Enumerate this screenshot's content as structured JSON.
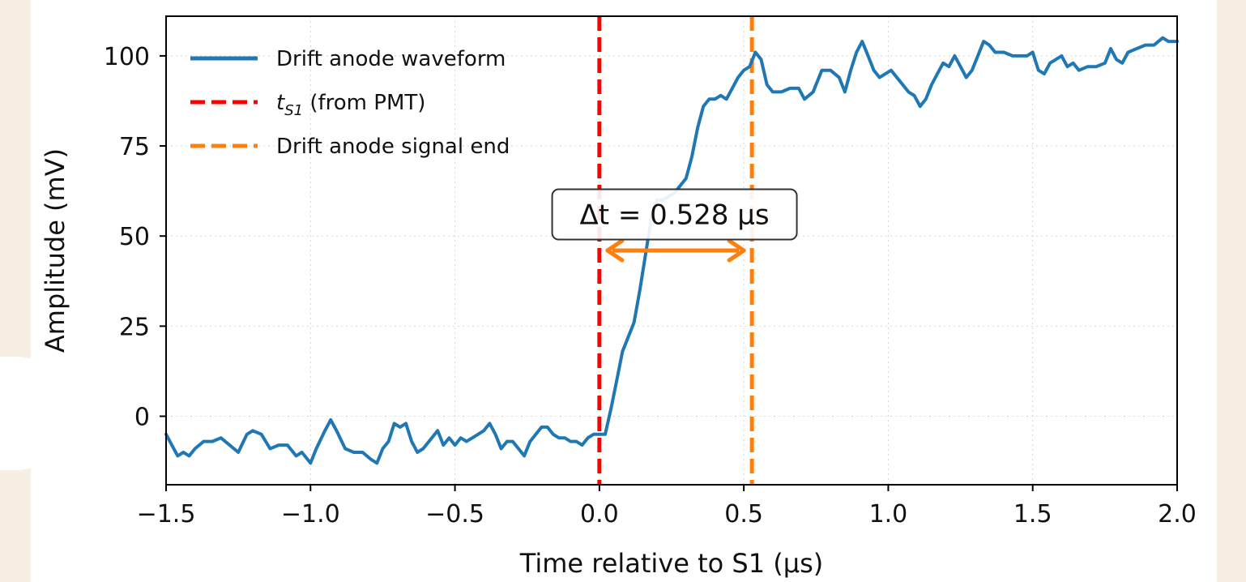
{
  "chart_data": {
    "type": "line",
    "xlabel": "Time relative to S1 (μs)",
    "ylabel": "Amplitude (mV)",
    "xlim": [
      -1.5,
      2.0
    ],
    "ylim": [
      -19,
      111
    ],
    "xticks": [
      -1.5,
      -1.0,
      -0.5,
      0.0,
      0.5,
      1.0,
      1.5,
      2.0
    ],
    "xtick_labels": [
      "−1.5",
      "−1.0",
      "−0.5",
      "0.0",
      "0.5",
      "1.0",
      "1.5",
      "2.0"
    ],
    "yticks": [
      0,
      25,
      50,
      75,
      100
    ],
    "ytick_labels": [
      "0",
      "25",
      "50",
      "75",
      "100"
    ],
    "grid": true,
    "legend_position": "top-left",
    "series": [
      {
        "name": "Drift anode waveform",
        "color": "#1f77b4",
        "points": [
          [
            -1.5,
            -5
          ],
          [
            -1.48,
            -8
          ],
          [
            -1.46,
            -11
          ],
          [
            -1.44,
            -10
          ],
          [
            -1.42,
            -11
          ],
          [
            -1.4,
            -9
          ],
          [
            -1.37,
            -7
          ],
          [
            -1.34,
            -7
          ],
          [
            -1.31,
            -6
          ],
          [
            -1.28,
            -8
          ],
          [
            -1.25,
            -10
          ],
          [
            -1.22,
            -5
          ],
          [
            -1.2,
            -4
          ],
          [
            -1.17,
            -5
          ],
          [
            -1.14,
            -9
          ],
          [
            -1.11,
            -8
          ],
          [
            -1.08,
            -8
          ],
          [
            -1.05,
            -11
          ],
          [
            -1.03,
            -10
          ],
          [
            -1.0,
            -13
          ],
          [
            -0.98,
            -9
          ],
          [
            -0.95,
            -4
          ],
          [
            -0.93,
            -1
          ],
          [
            -0.91,
            -4
          ],
          [
            -0.88,
            -9
          ],
          [
            -0.85,
            -10
          ],
          [
            -0.82,
            -10
          ],
          [
            -0.79,
            -12
          ],
          [
            -0.77,
            -13
          ],
          [
            -0.75,
            -9
          ],
          [
            -0.73,
            -7
          ],
          [
            -0.71,
            -2
          ],
          [
            -0.69,
            -3
          ],
          [
            -0.67,
            -2
          ],
          [
            -0.65,
            -7
          ],
          [
            -0.63,
            -10
          ],
          [
            -0.61,
            -9
          ],
          [
            -0.58,
            -6
          ],
          [
            -0.56,
            -4
          ],
          [
            -0.54,
            -8
          ],
          [
            -0.52,
            -6
          ],
          [
            -0.5,
            -8
          ],
          [
            -0.48,
            -6
          ],
          [
            -0.46,
            -7
          ],
          [
            -0.44,
            -6
          ],
          [
            -0.42,
            -5
          ],
          [
            -0.4,
            -4
          ],
          [
            -0.38,
            -2
          ],
          [
            -0.36,
            -5
          ],
          [
            -0.34,
            -9
          ],
          [
            -0.32,
            -7
          ],
          [
            -0.3,
            -7
          ],
          [
            -0.28,
            -9
          ],
          [
            -0.26,
            -11
          ],
          [
            -0.24,
            -7
          ],
          [
            -0.22,
            -5
          ],
          [
            -0.2,
            -3
          ],
          [
            -0.18,
            -3
          ],
          [
            -0.16,
            -5
          ],
          [
            -0.14,
            -6
          ],
          [
            -0.12,
            -6
          ],
          [
            -0.1,
            -7
          ],
          [
            -0.08,
            -7
          ],
          [
            -0.06,
            -8
          ],
          [
            -0.04,
            -6
          ],
          [
            -0.02,
            -5
          ],
          [
            0.0,
            -5
          ],
          [
            0.02,
            -5
          ],
          [
            0.04,
            2
          ],
          [
            0.06,
            10
          ],
          [
            0.08,
            18
          ],
          [
            0.1,
            22
          ],
          [
            0.12,
            26
          ],
          [
            0.14,
            35
          ],
          [
            0.16,
            45
          ],
          [
            0.18,
            55
          ],
          [
            0.2,
            60
          ],
          [
            0.22,
            60
          ],
          [
            0.24,
            61
          ],
          [
            0.26,
            62
          ],
          [
            0.28,
            64
          ],
          [
            0.3,
            66
          ],
          [
            0.32,
            72
          ],
          [
            0.34,
            80
          ],
          [
            0.36,
            86
          ],
          [
            0.38,
            88
          ],
          [
            0.4,
            88
          ],
          [
            0.42,
            89
          ],
          [
            0.44,
            88
          ],
          [
            0.46,
            91
          ],
          [
            0.48,
            94
          ],
          [
            0.5,
            96
          ],
          [
            0.52,
            97
          ],
          [
            0.54,
            101
          ],
          [
            0.56,
            99
          ],
          [
            0.58,
            92
          ],
          [
            0.6,
            90
          ],
          [
            0.63,
            90
          ],
          [
            0.66,
            91
          ],
          [
            0.69,
            91
          ],
          [
            0.71,
            88
          ],
          [
            0.74,
            90
          ],
          [
            0.77,
            96
          ],
          [
            0.8,
            96
          ],
          [
            0.83,
            94
          ],
          [
            0.85,
            90
          ],
          [
            0.87,
            96
          ],
          [
            0.89,
            101
          ],
          [
            0.91,
            104
          ],
          [
            0.93,
            100
          ],
          [
            0.95,
            96
          ],
          [
            0.97,
            94
          ],
          [
            0.99,
            95
          ],
          [
            1.01,
            96
          ],
          [
            1.03,
            94
          ],
          [
            1.05,
            92
          ],
          [
            1.07,
            90
          ],
          [
            1.09,
            89
          ],
          [
            1.11,
            86
          ],
          [
            1.13,
            88
          ],
          [
            1.15,
            92
          ],
          [
            1.17,
            95
          ],
          [
            1.19,
            98
          ],
          [
            1.21,
            97
          ],
          [
            1.23,
            100
          ],
          [
            1.25,
            97
          ],
          [
            1.27,
            94
          ],
          [
            1.29,
            96
          ],
          [
            1.31,
            100
          ],
          [
            1.33,
            104
          ],
          [
            1.35,
            103
          ],
          [
            1.37,
            101
          ],
          [
            1.4,
            101
          ],
          [
            1.43,
            100
          ],
          [
            1.46,
            100
          ],
          [
            1.48,
            100
          ],
          [
            1.5,
            101
          ],
          [
            1.52,
            96
          ],
          [
            1.54,
            95
          ],
          [
            1.56,
            98
          ],
          [
            1.58,
            99
          ],
          [
            1.6,
            100
          ],
          [
            1.62,
            97
          ],
          [
            1.64,
            98
          ],
          [
            1.66,
            96
          ],
          [
            1.69,
            97
          ],
          [
            1.72,
            97
          ],
          [
            1.75,
            98
          ],
          [
            1.77,
            102
          ],
          [
            1.79,
            99
          ],
          [
            1.81,
            98
          ],
          [
            1.83,
            101
          ],
          [
            1.86,
            102
          ],
          [
            1.89,
            103
          ],
          [
            1.92,
            103
          ],
          [
            1.95,
            105
          ],
          [
            1.97,
            104
          ],
          [
            2.0,
            104
          ]
        ]
      }
    ],
    "vlines": [
      {
        "name": "t_S1 (from PMT)",
        "x": 0.0,
        "color": "#ff0000",
        "style": "dashed"
      },
      {
        "name": "Drift anode signal end",
        "x": 0.528,
        "color": "#ff7f0e",
        "style": "dashed"
      }
    ],
    "annotation": {
      "text": "Δt = 0.528 μs",
      "x": 0.26,
      "y": 56,
      "arrow": {
        "x_start": 0.0,
        "x_end": 0.528,
        "y": 46,
        "color": "#ff7f0e"
      }
    },
    "legend": [
      {
        "label": "Drift anode waveform",
        "type": "solid",
        "color": "#1f77b4"
      },
      {
        "label_main": "t",
        "label_sub": "S1",
        "label_rest": " (from PMT)",
        "type": "dashed",
        "color": "#ff0000"
      },
      {
        "label": "Drift anode signal end",
        "type": "dashed",
        "color": "#ff7f0e"
      }
    ]
  }
}
